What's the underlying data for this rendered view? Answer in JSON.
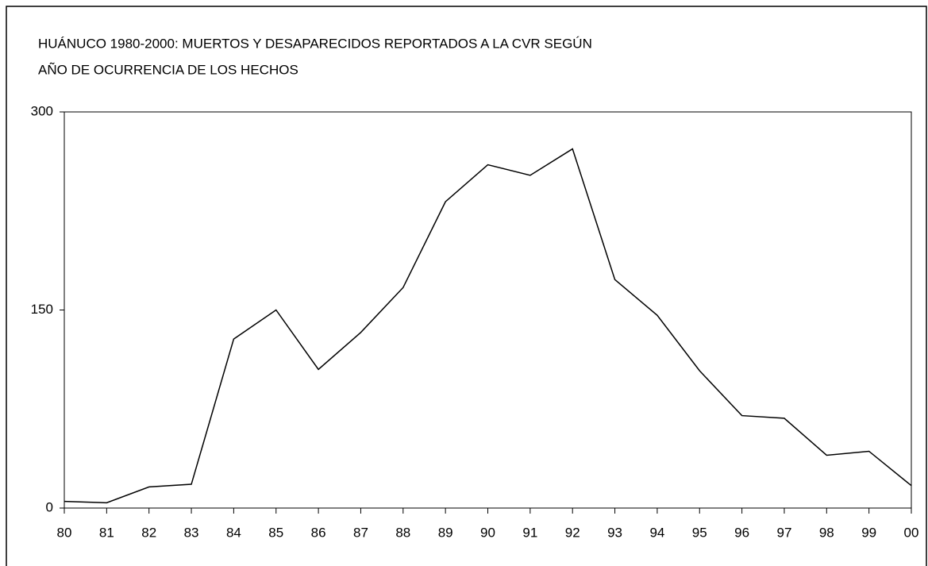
{
  "chart_data": {
    "type": "line",
    "title": [
      "HUÁNUCO 1980-2000: MUERTOS Y DESAPARECIDOS REPORTADOS A LA CVR SEGÚN",
      "AÑO DE OCURRENCIA DE LOS HECHOS"
    ],
    "categories": [
      "80",
      "81",
      "82",
      "83",
      "84",
      "85",
      "86",
      "87",
      "88",
      "89",
      "90",
      "91",
      "92",
      "93",
      "94",
      "95",
      "96",
      "97",
      "98",
      "99",
      "00"
    ],
    "values": [
      5,
      4,
      16,
      18,
      128,
      150,
      105,
      133,
      167,
      232,
      260,
      252,
      272,
      173,
      146,
      104,
      70,
      68,
      40,
      43,
      17
    ],
    "color": "#000000",
    "ylim": [
      0,
      300
    ],
    "yticks": [
      0,
      150,
      300
    ],
    "grid": false
  }
}
